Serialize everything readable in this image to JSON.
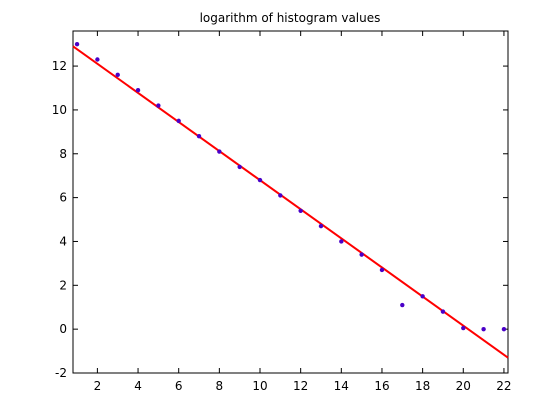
{
  "chart_data": {
    "type": "scatter",
    "title": "logarithm of histogram values",
    "xlabel": "",
    "ylabel": "",
    "xlim": [
      0.8,
      22.2
    ],
    "ylim": [
      -2,
      13.6
    ],
    "x_ticks": [
      2,
      4,
      6,
      8,
      10,
      12,
      14,
      16,
      18,
      20,
      22
    ],
    "y_ticks": [
      -2,
      0,
      2,
      4,
      6,
      8,
      10,
      12
    ],
    "grid": false,
    "series": [
      {
        "kind": "points",
        "color": "#4a00c8",
        "x": [
          1,
          2,
          3,
          4,
          5,
          6,
          7,
          8,
          9,
          10,
          11,
          12,
          13,
          14,
          15,
          16,
          17,
          18,
          19,
          20,
          21,
          22
        ],
        "y": [
          13.0,
          12.3,
          11.6,
          10.9,
          10.2,
          9.5,
          8.8,
          8.1,
          7.4,
          6.8,
          6.1,
          5.4,
          4.7,
          4.0,
          3.4,
          2.7,
          1.1,
          1.5,
          0.8,
          0.05,
          0.0,
          0.0
        ]
      },
      {
        "kind": "fit-line",
        "color": "#ff0000",
        "x": [
          0.8,
          22.2
        ],
        "y": [
          12.9,
          -1.3
        ]
      }
    ]
  }
}
